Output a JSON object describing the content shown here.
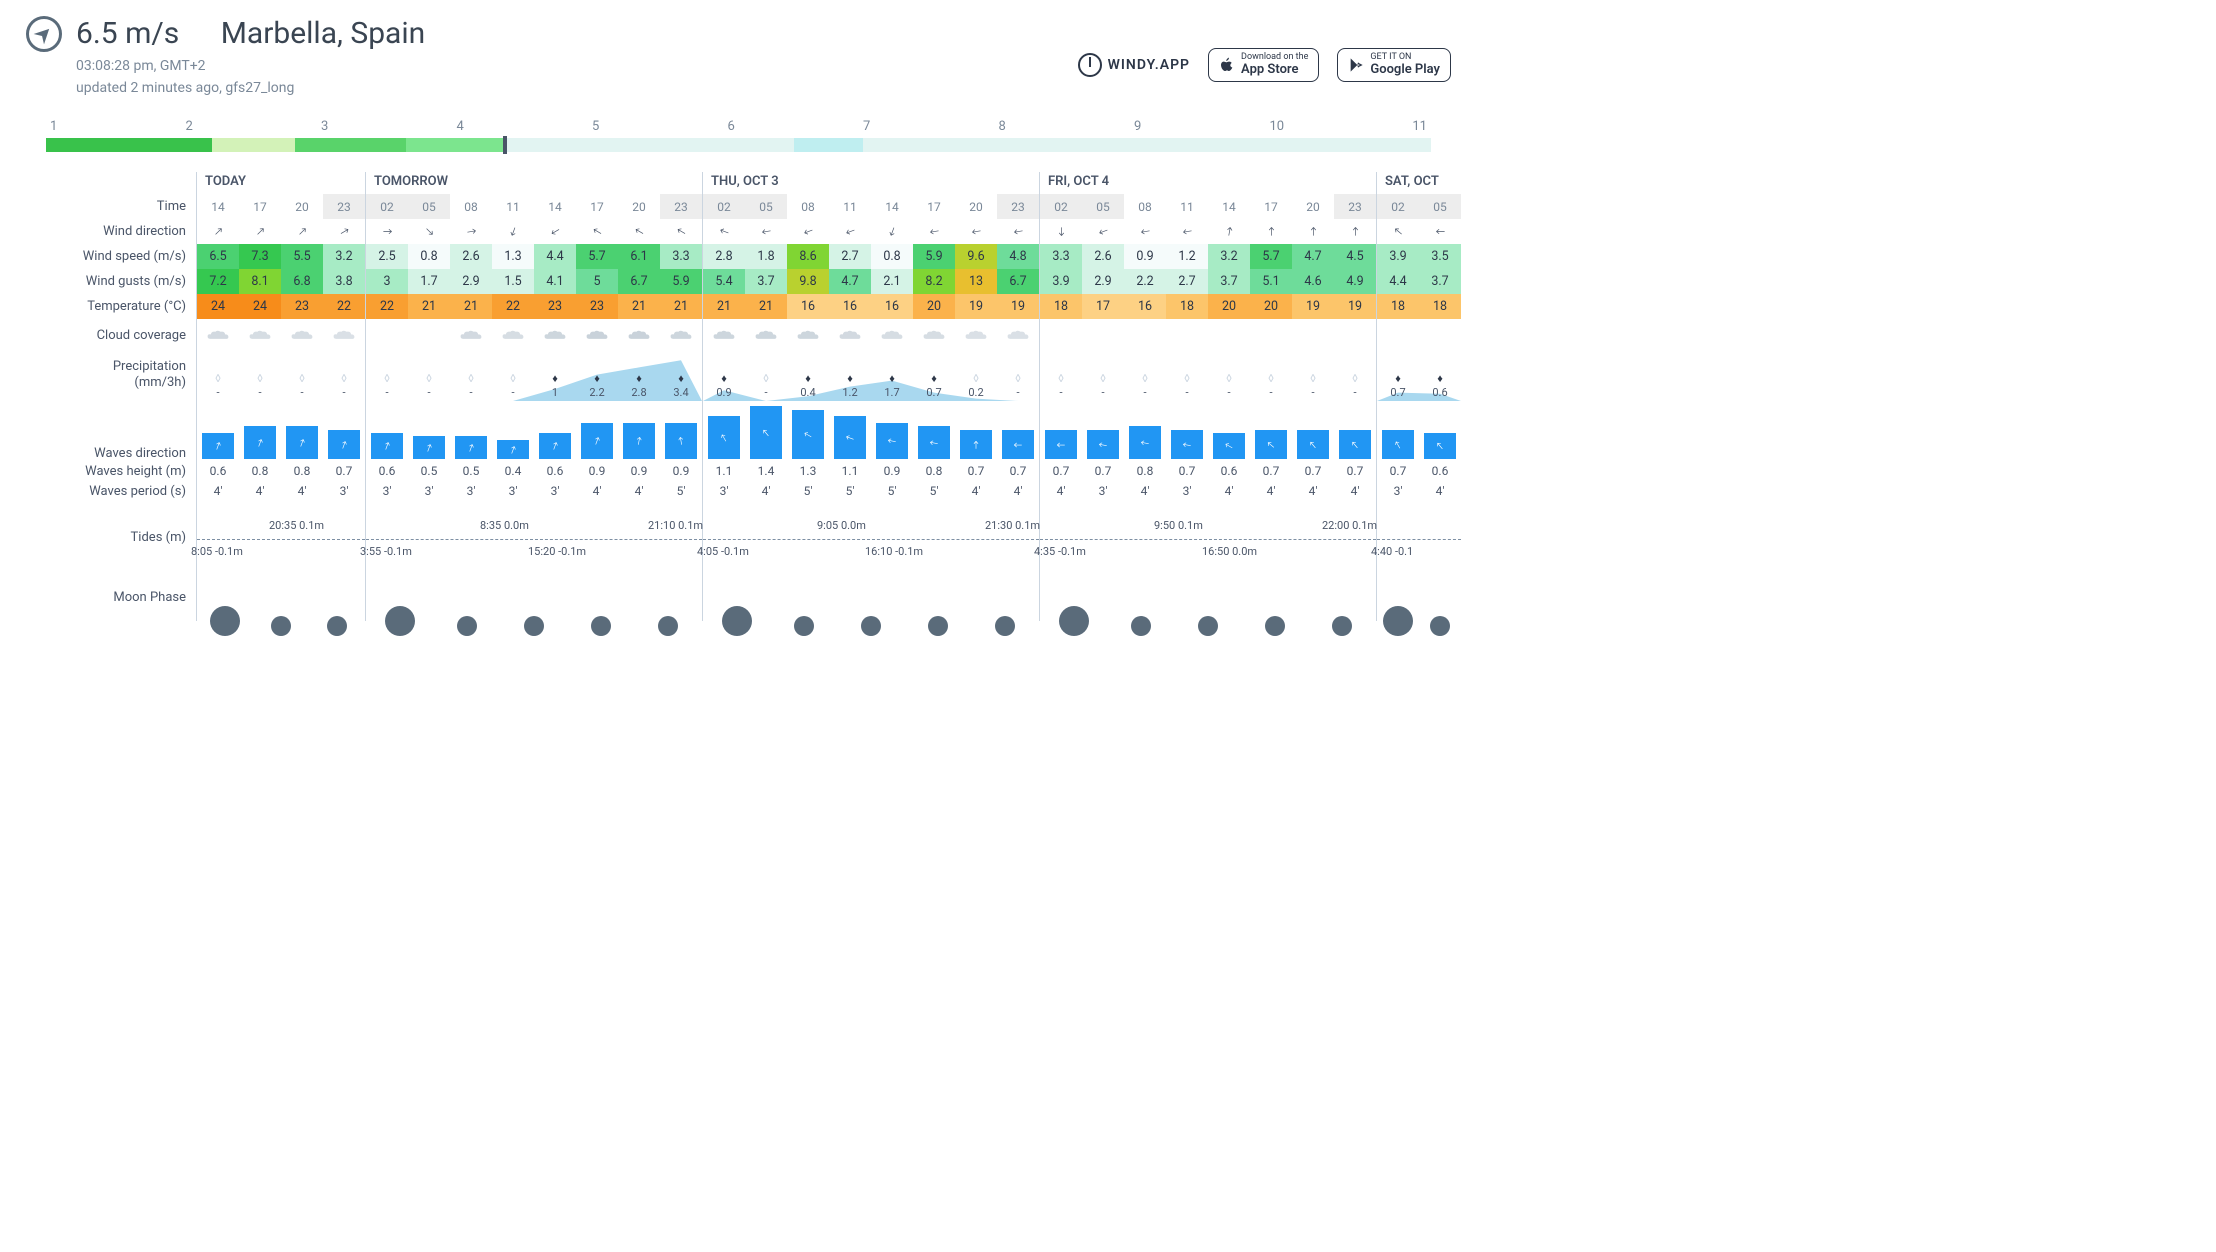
{
  "header": {
    "current_speed": "6.5 m/s",
    "location": "Marbella, Spain",
    "time": "03:08:28 pm, GMT+2",
    "updated": "updated 2 minutes ago, gfs27_long",
    "brand": "WINDY.APP",
    "appstore_small": "Download on the",
    "appstore_big": "App Store",
    "gplay_small": "GET IT ON",
    "gplay_big": "Google Play"
  },
  "timeline": {
    "days": [
      "1",
      "2",
      "3",
      "4",
      "5",
      "6",
      "7",
      "8",
      "9",
      "10",
      "11"
    ],
    "marker_pct": 33,
    "segments": [
      {
        "l": 0,
        "w": 12,
        "c": "#39c24b"
      },
      {
        "l": 12,
        "w": 6,
        "c": "#d3f2b8"
      },
      {
        "l": 18,
        "w": 8,
        "c": "#59d36a"
      },
      {
        "l": 26,
        "w": 7,
        "c": "#7ce58e"
      },
      {
        "l": 33,
        "w": 21,
        "c": "#e2f4f2"
      },
      {
        "l": 54,
        "w": 5,
        "c": "#bfeef0"
      },
      {
        "l": 59,
        "w": 14,
        "c": "#e2f4f2"
      },
      {
        "l": 73,
        "w": 27,
        "c": "#e2f4f2"
      }
    ]
  },
  "labels": {
    "time": "Time",
    "wdir": "Wind direction",
    "wspeed": "Wind speed (m/s)",
    "wgust": "Wind gusts (m/s)",
    "temp": "Temperature (°C)",
    "cloud": "Cloud coverage",
    "prec": "Precipitation\n(mm/3h)",
    "wavedir": "Waves direction",
    "waveh": "Waves height (m)",
    "wavep": "Waves period (s)",
    "tides": "Tides (m)",
    "moon": "Moon Phase"
  },
  "colors": {
    "wind_speed_scale": [
      {
        "min": 0,
        "c": "#f5fbfb"
      },
      {
        "min": 1.5,
        "c": "#d5f3e6"
      },
      {
        "min": 3,
        "c": "#a7ebc5"
      },
      {
        "min": 4.5,
        "c": "#6edc9a"
      },
      {
        "min": 5.5,
        "c": "#4bd171"
      },
      {
        "min": 7,
        "c": "#35c850"
      },
      {
        "min": 8,
        "c": "#80d533"
      },
      {
        "min": 9,
        "c": "#b9d12f"
      },
      {
        "min": 12,
        "c": "#e8bf2f"
      }
    ],
    "temp_scale": [
      {
        "min": 16,
        "c": "#fdd184"
      },
      {
        "min": 18,
        "c": "#fcc56a"
      },
      {
        "min": 20,
        "c": "#fbb24b"
      },
      {
        "min": 22,
        "c": "#f99f31"
      },
      {
        "min": 24,
        "c": "#f78c1a"
      }
    ],
    "wave_bar": "#2196f3",
    "prec_area": "#a9d8ef",
    "prec_fill_drop": "#2d3748",
    "prec_empty_drop": "#cbd5e0"
  },
  "tides": {
    "high": [
      {
        "col": 0,
        "hour": 2,
        "text": "20:35 0.1m"
      },
      {
        "col": 1,
        "hour": 3,
        "text": "8:35 0.0m"
      },
      {
        "col": 1,
        "hour": 7,
        "text": "21:10 0.1m"
      },
      {
        "col": 2,
        "hour": 3,
        "text": "9:05 0.0m"
      },
      {
        "col": 2,
        "hour": 7,
        "text": "21:30 0.1m"
      },
      {
        "col": 3,
        "hour": 3,
        "text": "9:50 0.1m"
      },
      {
        "col": 3,
        "hour": 7,
        "text": "22:00 0.1m"
      }
    ],
    "low": [
      {
        "col": 0,
        "hour": 0,
        "text": "8:05 -0.1m"
      },
      {
        "col": 1,
        "hour": 0,
        "text": "3:55 -0.1m"
      },
      {
        "col": 1,
        "hour": 4,
        "text": "15:20 -0.1m"
      },
      {
        "col": 2,
        "hour": 0,
        "text": "4:05 -0.1m"
      },
      {
        "col": 2,
        "hour": 4,
        "text": "16:10 -0.1m"
      },
      {
        "col": 3,
        "hour": 0,
        "text": "4:35 -0.1m"
      },
      {
        "col": 3,
        "hour": 4,
        "text": "16:50 0.0m"
      },
      {
        "col": 4,
        "hour": 0,
        "text": "4:40 -0.1"
      }
    ]
  },
  "days": [
    {
      "label": "TODAY",
      "hours": [
        {
          "t": "14",
          "dir": 45,
          "ws": 6.5,
          "wg": 7.2,
          "temp": 24,
          "cloud": 0.4,
          "prec": null,
          "wdir": 20,
          "wh": 0.6,
          "wp": "4'"
        },
        {
          "t": "17",
          "dir": 45,
          "ws": 7.3,
          "wg": 8.1,
          "temp": 24,
          "cloud": 0.3,
          "prec": null,
          "wdir": 20,
          "wh": 0.8,
          "wp": "4'"
        },
        {
          "t": "20",
          "dir": 45,
          "ws": 5.5,
          "wg": 6.8,
          "temp": 23,
          "cloud": 0.3,
          "prec": null,
          "wdir": 20,
          "wh": 0.8,
          "wp": "4'"
        },
        {
          "t": "23",
          "night": true,
          "dir": 60,
          "ws": 3.2,
          "wg": 3.8,
          "temp": 22,
          "cloud": 0.2,
          "prec": null,
          "wdir": 20,
          "wh": 0.7,
          "wp": "3'"
        }
      ]
    },
    {
      "label": "TOMORROW",
      "hours": [
        {
          "t": "02",
          "night": true,
          "dir": 90,
          "ws": 2.5,
          "wg": 3.0,
          "temp": 22,
          "cloud": 0,
          "prec": null,
          "wdir": 20,
          "wh": 0.6,
          "wp": "3'"
        },
        {
          "t": "05",
          "night": true,
          "dir": 135,
          "ws": 0.8,
          "wg": 1.7,
          "temp": 21,
          "cloud": 0,
          "prec": null,
          "wdir": 20,
          "wh": 0.5,
          "wp": "3'"
        },
        {
          "t": "08",
          "dir": 80,
          "ws": 2.6,
          "wg": 2.9,
          "temp": 21,
          "cloud": 0.4,
          "prec": null,
          "wdir": 20,
          "wh": 0.5,
          "wp": "3'"
        },
        {
          "t": "11",
          "dir": 200,
          "ws": 1.3,
          "wg": 1.5,
          "temp": 22,
          "cloud": 0.3,
          "prec": null,
          "wdir": 20,
          "wh": 0.4,
          "wp": "3'"
        },
        {
          "t": "14",
          "dir": 240,
          "ws": 4.4,
          "wg": 4.1,
          "temp": 23,
          "cloud": 0.5,
          "prec": 1,
          "pf": true,
          "wdir": 20,
          "wh": 0.6,
          "wp": "3'"
        },
        {
          "t": "17",
          "dir": 300,
          "ws": 5.7,
          "wg": 5.0,
          "temp": 23,
          "cloud": 0.6,
          "prec": 2.2,
          "pf": true,
          "wdir": 20,
          "wh": 0.9,
          "wp": "4'"
        },
        {
          "t": "20",
          "dir": 300,
          "ws": 6.1,
          "wg": 6.7,
          "temp": 21,
          "cloud": 0.6,
          "prec": 2.8,
          "pf": true,
          "wdir": 10,
          "wh": 0.9,
          "wp": "4'"
        },
        {
          "t": "23",
          "night": true,
          "dir": 300,
          "ws": 3.3,
          "wg": 5.9,
          "temp": 21,
          "cloud": 0.5,
          "prec": 3.4,
          "pf": true,
          "wdir": 350,
          "wh": 0.9,
          "wp": "5'"
        }
      ]
    },
    {
      "label": "THU, OCT 3",
      "hours": [
        {
          "t": "02",
          "night": true,
          "dir": 290,
          "ws": 2.8,
          "wg": 5.4,
          "temp": 21,
          "cloud": 0.5,
          "prec": 0.9,
          "pf": true,
          "wdir": 330,
          "wh": 1.1,
          "wp": "3'"
        },
        {
          "t": "05",
          "night": true,
          "dir": 260,
          "ws": 1.8,
          "wg": 3.7,
          "temp": 21,
          "cloud": 0.5,
          "prec": null,
          "wdir": 320,
          "wh": 1.4,
          "wp": "4'"
        },
        {
          "t": "08",
          "dir": 250,
          "ws": 8.6,
          "wg": 9.8,
          "temp": 16,
          "cloud": 0.5,
          "prec": 0.4,
          "pf": true,
          "wdir": 300,
          "wh": 1.3,
          "wp": "5'"
        },
        {
          "t": "11",
          "dir": 250,
          "ws": 2.7,
          "wg": 4.7,
          "temp": 16,
          "cloud": 0.4,
          "prec": 1.2,
          "pf": true,
          "wdir": 290,
          "wh": 1.1,
          "wp": "5'"
        },
        {
          "t": "14",
          "dir": 200,
          "ws": 0.8,
          "wg": 2.1,
          "temp": 16,
          "cloud": 0.3,
          "prec": 1.7,
          "pf": true,
          "wdir": 280,
          "wh": 0.9,
          "wp": "5'"
        },
        {
          "t": "17",
          "dir": 260,
          "ws": 5.9,
          "wg": 8.2,
          "temp": 20,
          "cloud": 0.3,
          "prec": 0.7,
          "pf": true,
          "wdir": 280,
          "wh": 0.8,
          "wp": "5'"
        },
        {
          "t": "20",
          "dir": 260,
          "ws": 9.6,
          "wg": 13,
          "temp": 19,
          "cloud": 0.2,
          "prec": 0.2,
          "wdir": 0,
          "wh": 0.7,
          "wp": "4'"
        },
        {
          "t": "23",
          "night": true,
          "dir": 260,
          "ws": 4.8,
          "wg": 6.7,
          "temp": 19,
          "cloud": 0.2,
          "prec": null,
          "wdir": 270,
          "wh": 0.7,
          "wp": "4'"
        }
      ]
    },
    {
      "label": "FRI, OCT 4",
      "hours": [
        {
          "t": "02",
          "night": true,
          "dir": 180,
          "ws": 3.3,
          "wg": 3.9,
          "temp": 18,
          "cloud": 0,
          "prec": null,
          "wdir": 270,
          "wh": 0.7,
          "wp": "4'"
        },
        {
          "t": "05",
          "night": true,
          "dir": 250,
          "ws": 2.6,
          "wg": 2.9,
          "temp": 17,
          "cloud": 0,
          "prec": null,
          "wdir": 280,
          "wh": 0.7,
          "wp": "3'"
        },
        {
          "t": "08",
          "dir": 260,
          "ws": 0.9,
          "wg": 2.2,
          "temp": 16,
          "cloud": 0,
          "prec": null,
          "wdir": 280,
          "wh": 0.8,
          "wp": "4'"
        },
        {
          "t": "11",
          "dir": 260,
          "ws": 1.2,
          "wg": 2.7,
          "temp": 18,
          "cloud": 0,
          "prec": null,
          "wdir": 280,
          "wh": 0.7,
          "wp": "3'"
        },
        {
          "t": "14",
          "dir": 10,
          "ws": 3.2,
          "wg": 3.7,
          "temp": 20,
          "cloud": 0,
          "prec": null,
          "wdir": 300,
          "wh": 0.6,
          "wp": "4'"
        },
        {
          "t": "17",
          "dir": 0,
          "ws": 5.7,
          "wg": 5.1,
          "temp": 20,
          "cloud": 0,
          "prec": null,
          "wdir": 310,
          "wh": 0.7,
          "wp": "4'"
        },
        {
          "t": "20",
          "dir": 0,
          "ws": 4.7,
          "wg": 4.6,
          "temp": 19,
          "cloud": 0,
          "prec": null,
          "wdir": 320,
          "wh": 0.7,
          "wp": "4'"
        },
        {
          "t": "23",
          "night": true,
          "dir": 0,
          "ws": 4.5,
          "wg": 4.9,
          "temp": 19,
          "cloud": 0,
          "prec": null,
          "wdir": 320,
          "wh": 0.7,
          "wp": "4'"
        }
      ]
    },
    {
      "label": "SAT, OCT",
      "hours": [
        {
          "t": "02",
          "night": true,
          "dir": 310,
          "ws": 3.9,
          "wg": 4.4,
          "temp": 18,
          "cloud": 0,
          "prec": 0.7,
          "pf": true,
          "wdir": 330,
          "wh": 0.7,
          "wp": "3'"
        },
        {
          "t": "05",
          "night": true,
          "dir": 270,
          "ws": 3.5,
          "wg": 3.7,
          "temp": 18,
          "cloud": 0,
          "prec": 0.6,
          "pf": true,
          "wdir": 320,
          "wh": 0.6,
          "wp": "4'"
        }
      ]
    }
  ]
}
